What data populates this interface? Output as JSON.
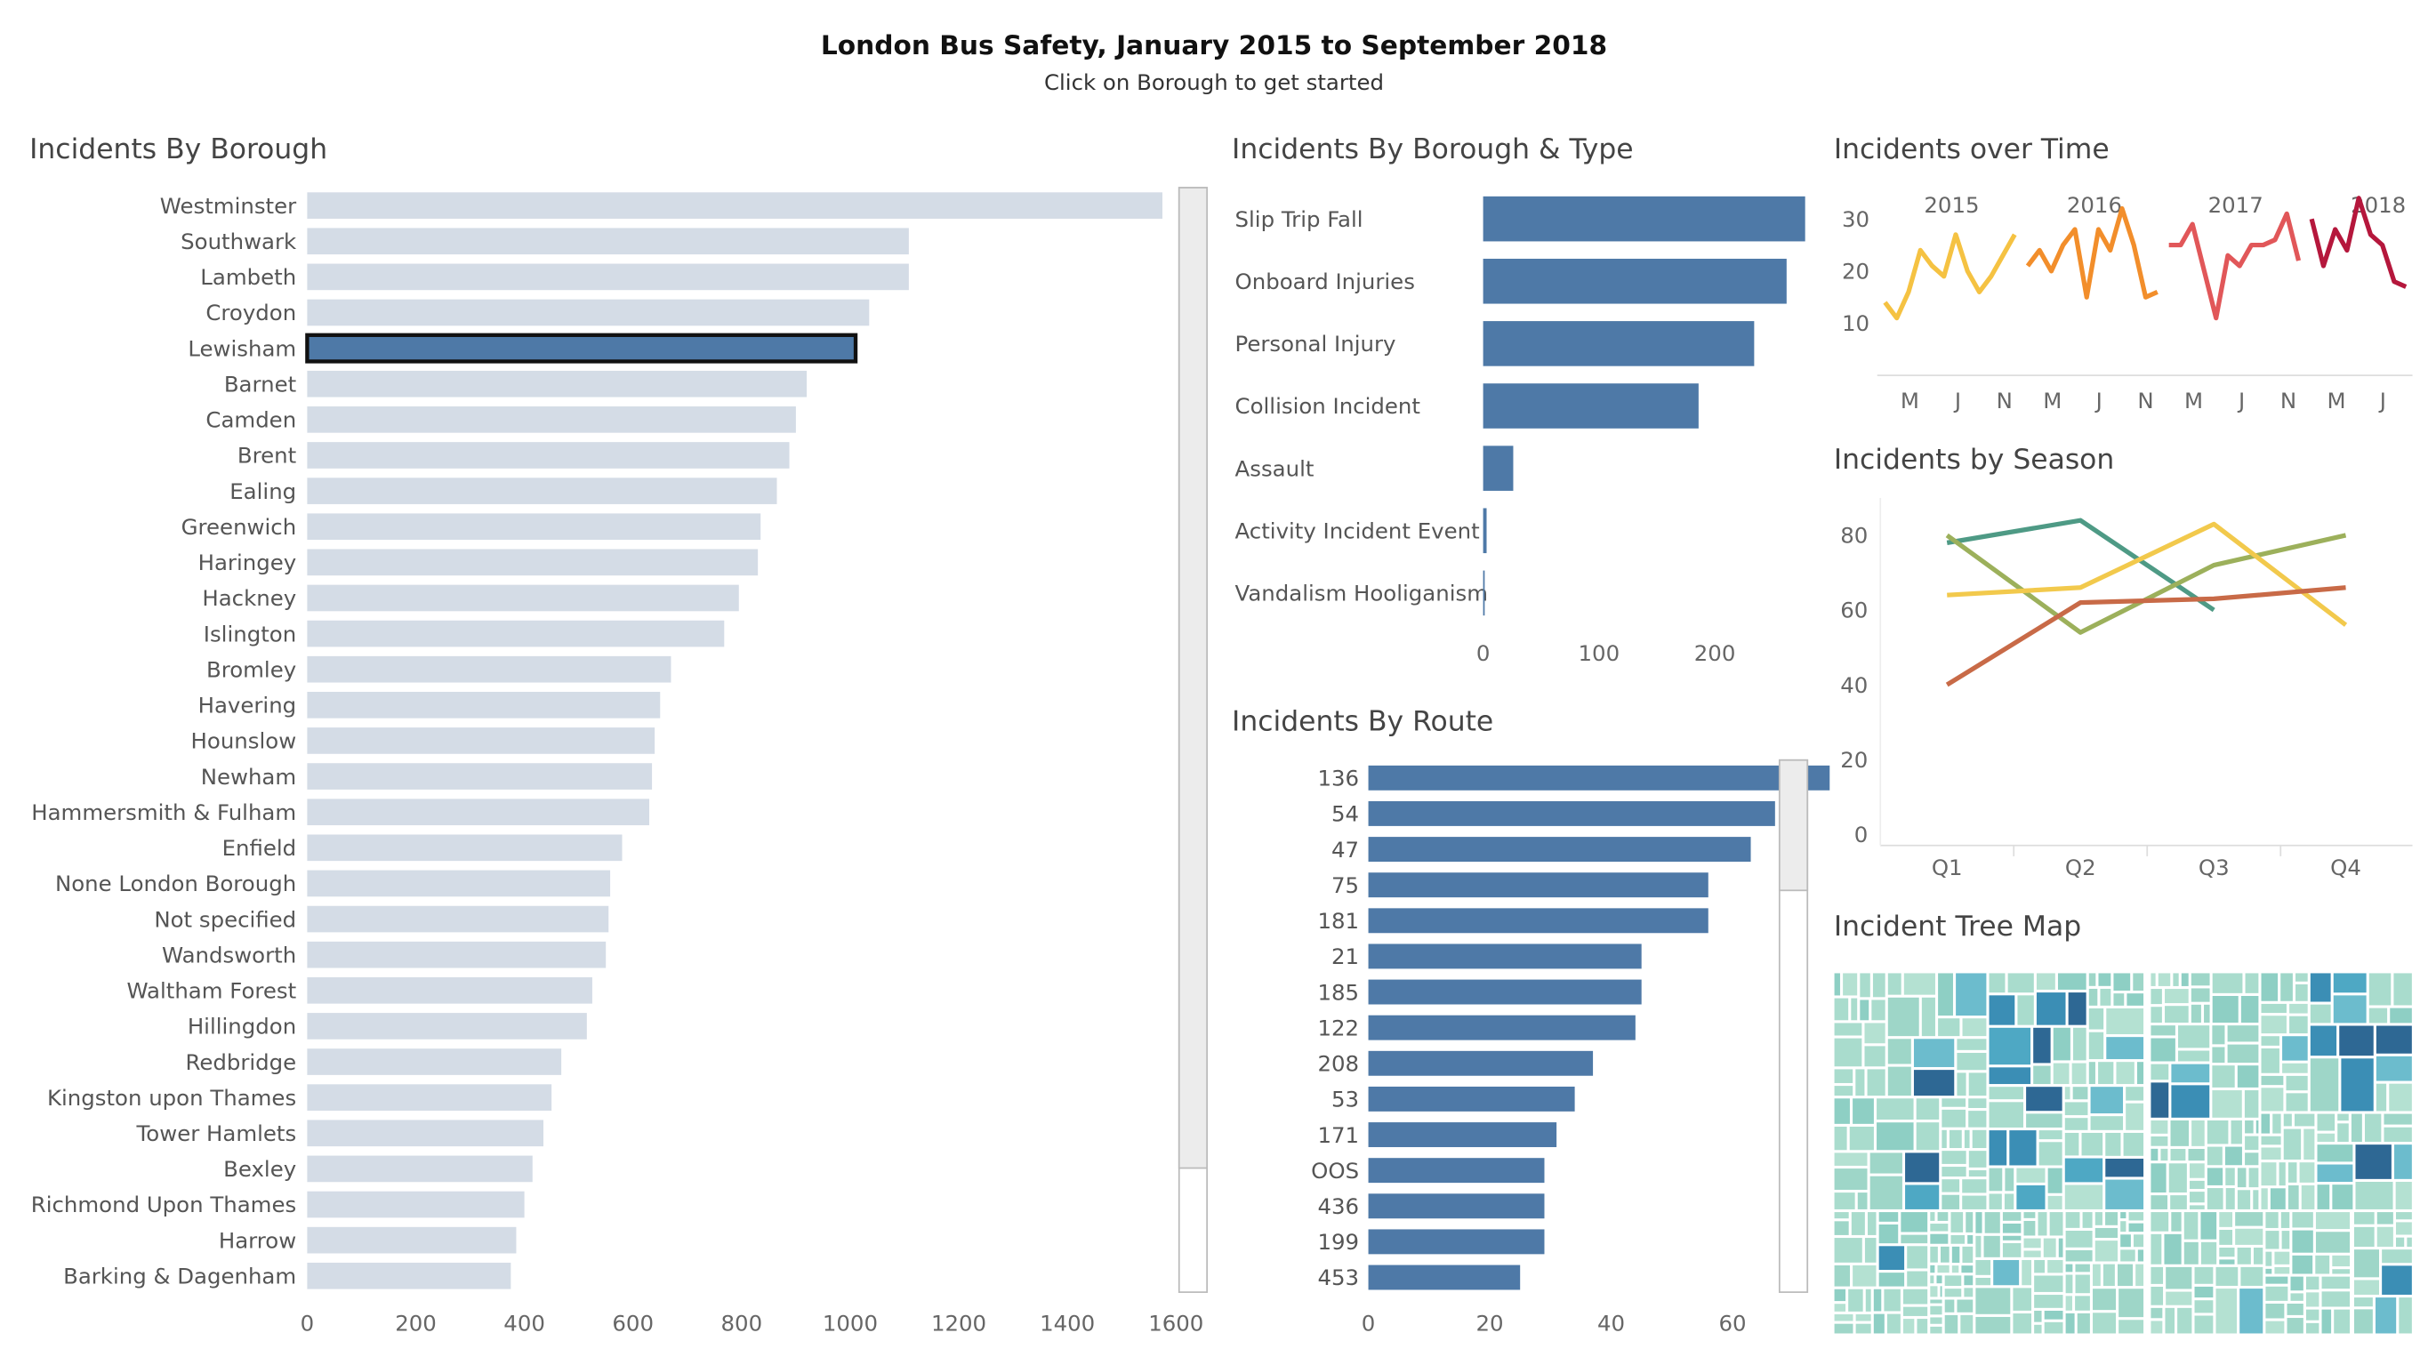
{
  "header": {
    "title": "London Bus Safety, January 2015 to September 2018",
    "subtitle": "Click on Borough to get started"
  },
  "colors": {
    "bar_inactive": "#d4dce6",
    "bar_active": "#4e79a7",
    "axis_text": "#666666",
    "scrollbar": "#ececec"
  },
  "panels": {
    "borough": "Incidents By Borough",
    "type": "Incidents By Borough & Type",
    "time": "Incidents over Time",
    "season": "Incidents by Season",
    "route": "Incidents By Route",
    "treemap": "Incident Tree Map"
  },
  "chart_data": [
    {
      "id": "borough",
      "type": "bar",
      "orientation": "horizontal",
      "title": "Incidents By Borough",
      "selected": "Lewisham",
      "categories": [
        "Westminster",
        "Southwark",
        "Lambeth",
        "Croydon",
        "Lewisham",
        "Barnet",
        "Camden",
        "Brent",
        "Ealing",
        "Greenwich",
        "Haringey",
        "Hackney",
        "Islington",
        "Bromley",
        "Havering",
        "Hounslow",
        "Newham",
        "Hammersmith & Fulham",
        "Enfield",
        "None London Borough",
        "Not specified",
        "Wandsworth",
        "Waltham Forest",
        "Hillingdon",
        "Redbridge",
        "Kingston upon Thames",
        "Tower Hamlets",
        "Bexley",
        "Richmond Upon Thames",
        "Harrow",
        "Barking & Dagenham"
      ],
      "values": [
        1575,
        1108,
        1108,
        1035,
        1010,
        920,
        900,
        888,
        865,
        835,
        830,
        795,
        768,
        670,
        650,
        640,
        635,
        630,
        580,
        558,
        555,
        550,
        525,
        515,
        468,
        450,
        435,
        415,
        400,
        385,
        375
      ],
      "xticks": [
        0,
        200,
        400,
        600,
        800,
        1000,
        1200,
        1400,
        1600
      ],
      "xlim": [
        0,
        1660
      ]
    },
    {
      "id": "type",
      "type": "bar",
      "orientation": "horizontal",
      "title": "Incidents By Borough & Type",
      "categories": [
        "Slip Trip Fall",
        "Onboard Injuries",
        "Personal Injury",
        "Collision Incident",
        "Assault",
        "Activity Incident Event",
        "Vandalism Hooliganism"
      ],
      "values": [
        278,
        262,
        234,
        186,
        26,
        3,
        1
      ],
      "xticks": [
        0,
        100,
        200
      ],
      "xlim": [
        -8,
        288
      ]
    },
    {
      "id": "route",
      "type": "bar",
      "orientation": "horizontal",
      "title": "Incidents By Route",
      "categories": [
        "136",
        "54",
        "47",
        "75",
        "181",
        "21",
        "185",
        "122",
        "208",
        "53",
        "171",
        "OOS",
        "436",
        "199",
        "453"
      ],
      "values": [
        76,
        67,
        63,
        56,
        56,
        45,
        45,
        44,
        37,
        34,
        31,
        29,
        29,
        29,
        25
      ],
      "xticks": [
        0,
        20,
        40,
        60
      ],
      "xlim": [
        0,
        80
      ]
    },
    {
      "id": "time",
      "type": "line",
      "title": "Incidents over Time",
      "year_labels": [
        "2015",
        "2016",
        "2017",
        "2018"
      ],
      "month_labels": [
        "M",
        "J",
        "N",
        "M",
        "J",
        "N",
        "M",
        "J",
        "N",
        "M",
        "J"
      ],
      "yticks": [
        10,
        20,
        30
      ],
      "ylim": [
        0,
        36
      ],
      "series": [
        {
          "year": "2015",
          "color": "#f5c242",
          "values": [
            14,
            11,
            16,
            24,
            21,
            19,
            27,
            20,
            16,
            19,
            23,
            27
          ]
        },
        {
          "year": "2016",
          "color": "#f28e2b",
          "values": [
            21,
            24,
            20,
            25,
            28,
            15,
            28,
            24,
            32,
            25,
            15,
            16
          ]
        },
        {
          "year": "2017",
          "color": "#e15759",
          "values": [
            25,
            25,
            29,
            20,
            11,
            23,
            21,
            25,
            25,
            26,
            31,
            22
          ]
        },
        {
          "year": "2018",
          "color": "#b5173c",
          "values": [
            30,
            21,
            28,
            24,
            34,
            27,
            25,
            18,
            17
          ]
        }
      ]
    },
    {
      "id": "season",
      "type": "line",
      "title": "Incidents by Season",
      "categories": [
        "Q1",
        "Q2",
        "Q3",
        "Q4"
      ],
      "yticks": [
        0,
        20,
        40,
        60,
        80
      ],
      "ylim": [
        -3,
        90
      ],
      "series": [
        {
          "color": "#4e9a85",
          "values": [
            78,
            84,
            60,
            null
          ]
        },
        {
          "color": "#9cb05b",
          "values": [
            80,
            54,
            72,
            80
          ]
        },
        {
          "color": "#f2c94c",
          "values": [
            64,
            66,
            83,
            56
          ]
        },
        {
          "color": "#c86a47",
          "values": [
            40,
            62,
            63,
            66
          ]
        }
      ]
    }
  ]
}
